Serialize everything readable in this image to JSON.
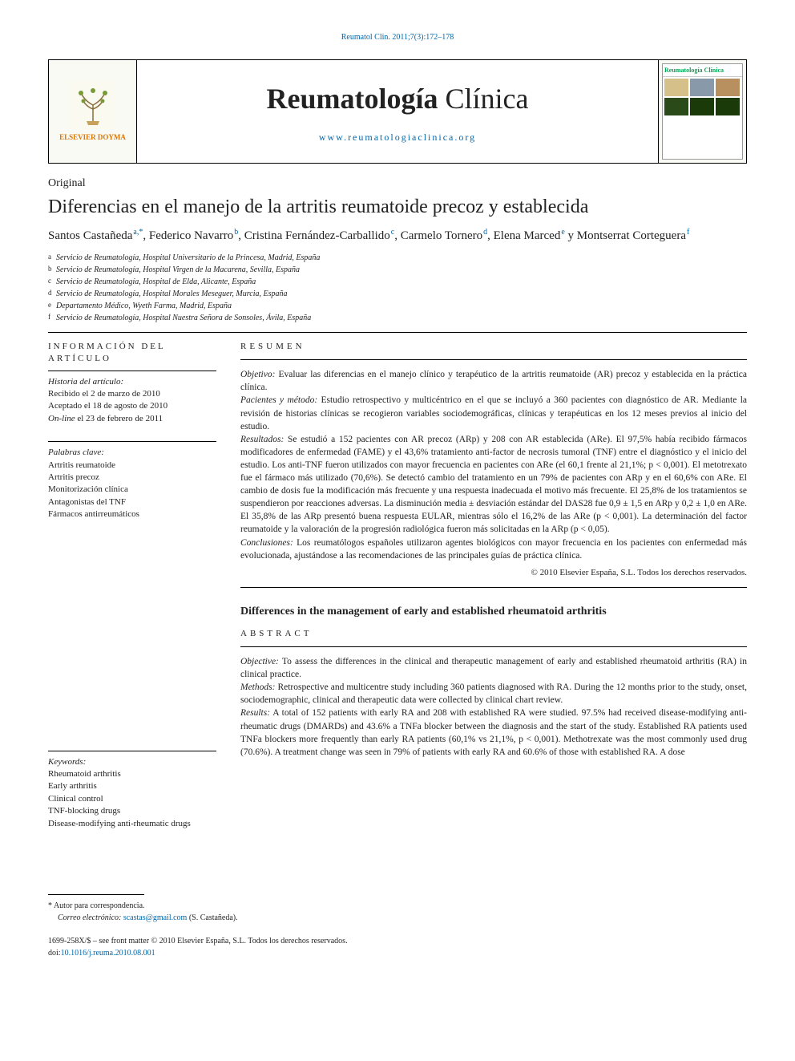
{
  "citation": "Reumatol Clin. 2011;7(3):172–178",
  "masthead": {
    "publisher": "ELSEVIER DOYMA",
    "journal_bold": "Reumatología",
    "journal_light": " Clínica",
    "url": "www.reumatologiaclinica.org",
    "cover_title": "Reumatología Clínica"
  },
  "section": "Original",
  "title_es": "Diferencias en el manejo de la artritis reumatoide precoz y establecida",
  "authors": [
    {
      "name": "Santos Castañeda",
      "affil": "a,*"
    },
    {
      "name": "Federico Navarro",
      "affil": "b"
    },
    {
      "name": "Cristina Fernández-Carballido",
      "affil": "c"
    },
    {
      "name": "Carmelo Tornero",
      "affil": "d"
    },
    {
      "name": "Elena Marced",
      "affil": "e"
    },
    {
      "name": "Montserrat Corteguera",
      "affil": "f"
    }
  ],
  "author_joiner": "  y  ",
  "affiliations": [
    {
      "key": "a",
      "text": "Servicio de Reumatología, Hospital Universitario de la Princesa, Madrid, España"
    },
    {
      "key": "b",
      "text": "Servicio de Reumatología, Hospital Virgen de la Macarena, Sevilla, España"
    },
    {
      "key": "c",
      "text": "Servicio de Reumatología, Hospital de Elda, Alicante, España"
    },
    {
      "key": "d",
      "text": "Servicio de Reumatología, Hospital Morales Meseguer, Murcia, España"
    },
    {
      "key": "e",
      "text": "Departamento Médico, Wyeth Farma, Madrid, España"
    },
    {
      "key": "f",
      "text": "Servicio de Reumatología, Hospital Nuestra Señora de Sonsoles, Ávila, España"
    }
  ],
  "sidebar": {
    "info_heading": "INFORMACIÓN DEL ARTÍCULO",
    "history_label": "Historia del artículo:",
    "received": "Recibido el 2 de marzo de 2010",
    "accepted": "Aceptado el 18 de agosto de 2010",
    "online_prefix": "On-line",
    "online_date": " el 23 de febrero de 2011",
    "keywords_es_label": "Palabras clave:",
    "keywords_es": [
      "Artritis reumatoide",
      "Artritis precoz",
      "Monitorización clínica",
      "Antagonistas del TNF",
      "Fármacos antirreumáticos"
    ],
    "keywords_en_label": "Keywords:",
    "keywords_en": [
      "Rheumatoid arthritis",
      "Early arthritis",
      "Clinical control",
      "TNF-blocking drugs",
      "Disease-modifying anti-rheumatic drugs"
    ]
  },
  "resumen": {
    "heading": "RESUMEN",
    "objetivo_label": "Objetivo:",
    "objetivo": " Evaluar las diferencias en el manejo clínico y terapéutico de la artritis reumatoide (AR) precoz y establecida en la práctica clínica.",
    "pacientes_label": "Pacientes y método:",
    "pacientes": " Estudio retrospectivo y multicéntrico en el que se incluyó a 360 pacientes con diagnóstico de AR. Mediante la revisión de historias clínicas se recogieron variables sociodemográficas, clínicas y terapéuticas en los 12 meses previos al inicio del estudio.",
    "resultados_label": "Resultados:",
    "resultados": " Se estudió a 152 pacientes con AR precoz (ARp) y 208 con AR establecida (ARe). El 97,5% había recibido fármacos modificadores de enfermedad (FAME) y el 43,6% tratamiento anti-factor de necrosis tumoral (TNF) entre el diagnóstico y el inicio del estudio. Los anti-TNF fueron utilizados con mayor frecuencia en pacientes con ARe (el 60,1 frente al 21,1%; p < 0,001). El metotrexato fue el fármaco más utilizado (70,6%). Se detectó cambio del tratamiento en un 79% de pacientes con ARp y en el 60,6% con ARe. El cambio de dosis fue la modificación más frecuente y una respuesta inadecuada el motivo más frecuente. El 25,8% de los tratamientos se suspendieron por reacciones adversas. La disminución media ± desviación estándar del DAS28 fue 0,9 ± 1,5 en ARp y 0,2 ± 1,0 en ARe. El 35,8% de las ARp presentó buena respuesta EULAR, mientras sólo el 16,2% de las ARe (p < 0,001). La determinación del factor reumatoide y la valoración de la progresión radiológica fueron más solicitadas en la ARp (p < 0,05).",
    "conclusiones_label": "Conclusiones:",
    "conclusiones": " Los reumatólogos españoles utilizaron agentes biológicos con mayor frecuencia en los pacientes con enfermedad más evolucionada, ajustándose a las recomendaciones de las principales guías de práctica clínica.",
    "copyright": "© 2010 Elsevier España, S.L. Todos los derechos reservados."
  },
  "title_en": "Differences in the management of early and established rheumatoid arthritis",
  "abstract": {
    "heading": "ABSTRACT",
    "objective_label": "Objective:",
    "objective": " To assess the differences in the clinical and therapeutic management of early and established rheumatoid arthritis (RA) in clinical practice.",
    "methods_label": "Methods:",
    "methods": " Retrospective and multicentre study including 360 patients diagnosed with RA. During the 12 months prior to the study, onset, sociodemographic, clinical and therapeutic data were collected by clinical chart review.",
    "results_label": "Results:",
    "results": " A total of 152 patients with early RA and 208 with established RA were studied. 97.5% had received disease-modifying anti-rheumatic drugs (DMARDs) and 43.6% a TNFa blocker between the diagnosis and the start of the study. Established RA patients used TNFa blockers more frequently than early RA patients (60,1% vs 21,1%, p < 0,001). Methotrexate was the most commonly used drug (70.6%). A treatment change was seen in 79% of patients with early RA and 60.6% of those with established RA. A dose"
  },
  "footnote": {
    "corr_label": "Autor para correspondencia.",
    "email_label": "Correo electrónico:",
    "email": "scastas@gmail.com",
    "email_person": " (S. Castañeda)."
  },
  "bottom": {
    "issn": "1699-258X/$ – see front matter © 2010 Elsevier España, S.L. Todos los derechos reservados.",
    "doi_prefix": "doi:",
    "doi": "10.1016/j.reuma.2010.08.001"
  },
  "colors": {
    "link": "#0066aa",
    "elsevier_orange": "#d97700",
    "cover_green": "#0a5"
  }
}
